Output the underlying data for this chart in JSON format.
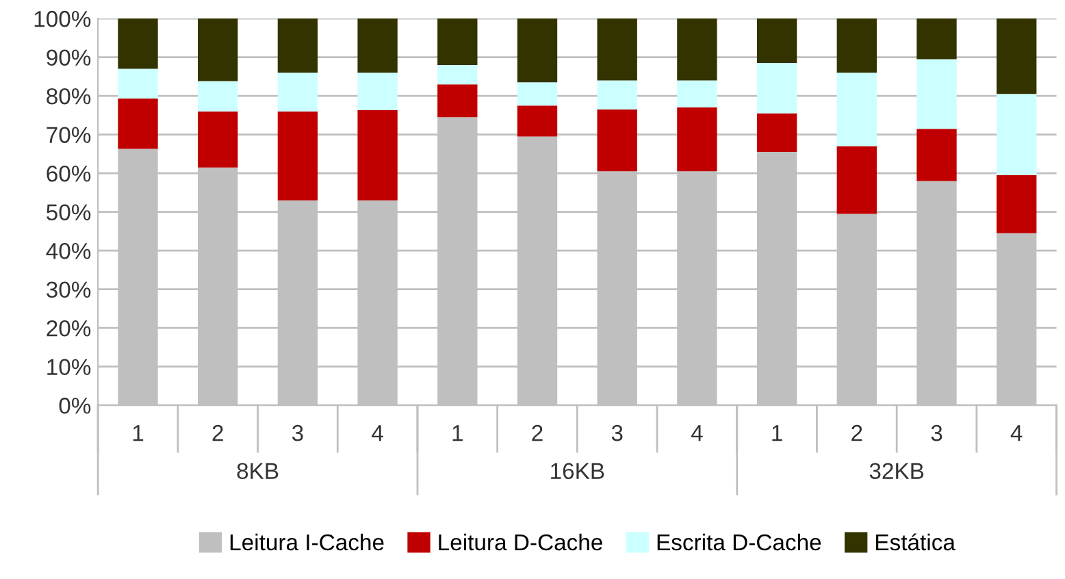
{
  "chart_data": {
    "type": "bar",
    "stacked": true,
    "categories": [
      "1",
      "2",
      "3",
      "4",
      "1",
      "2",
      "3",
      "4",
      "1",
      "2",
      "3",
      "4"
    ],
    "annotations": [
      "8KB",
      "16KB",
      "32KB"
    ],
    "series": [
      {
        "name": "Leitura I-Cache",
        "color": "#bfbfbf",
        "values": [
          66.3,
          61.5,
          53,
          53,
          74.5,
          69.5,
          60.5,
          60.5,
          65.5,
          49.5,
          58,
          44.5
        ]
      },
      {
        "name": "Leitura D-Cache",
        "color": "#c00000",
        "values": [
          13,
          14.5,
          23,
          23.3,
          8.5,
          8,
          16,
          16.5,
          10,
          17.5,
          13.5,
          15
        ]
      },
      {
        "name": "Escrita D-Cache",
        "color": "#ccffff",
        "values": [
          7.7,
          7.8,
          10,
          9.7,
          5,
          6,
          7.5,
          7,
          13,
          19,
          18,
          21
        ]
      },
      {
        "name": "Estática",
        "color": "#333300",
        "values": [
          13,
          16.2,
          14,
          14,
          12,
          16.5,
          16,
          16,
          11.5,
          14,
          10.5,
          19.5
        ]
      }
    ],
    "ylim": [
      0,
      100
    ],
    "yticks": [
      {
        "value": 0,
        "label": "0%"
      },
      {
        "value": 10,
        "label": "10%"
      },
      {
        "value": 20,
        "label": "20%"
      },
      {
        "value": 30,
        "label": "30%"
      },
      {
        "value": 40,
        "label": "40%"
      },
      {
        "value": 50,
        "label": "50%"
      },
      {
        "value": 60,
        "label": "60%"
      },
      {
        "value": 70,
        "label": "70%"
      },
      {
        "value": 80,
        "label": "80%"
      },
      {
        "value": 90,
        "label": "90%"
      },
      {
        "value": 100,
        "label": "100%"
      }
    ],
    "grid": "y",
    "legend": "bottom"
  }
}
